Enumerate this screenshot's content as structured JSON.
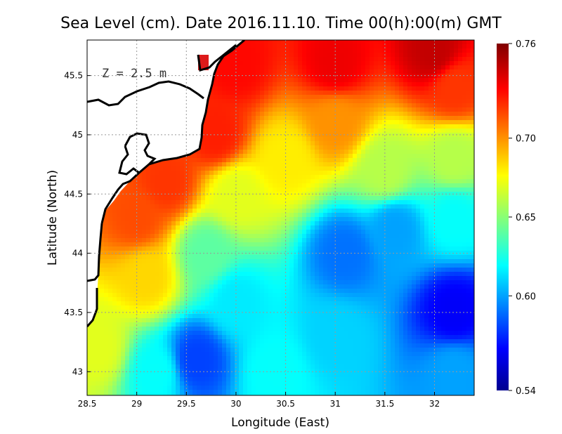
{
  "chart_data": {
    "type": "heatmap",
    "title": "Sea Level (cm). Date 2016.11.10. Time 00(h):00(m) GMT",
    "xlabel": "Longitude (East)",
    "ylabel": "Latitude (North)",
    "annotation": "Z = 2.5 m",
    "xlim": [
      28.5,
      32.4
    ],
    "ylim": [
      42.8,
      45.8
    ],
    "x_ticks": [
      28.5,
      29,
      29.5,
      30,
      30.5,
      31,
      31.5,
      32
    ],
    "x_tick_labels": [
      "28.5",
      "29",
      "29.5",
      "30",
      "30.5",
      "31",
      "31.5",
      "32"
    ],
    "y_ticks": [
      43,
      43.5,
      44,
      44.5,
      45,
      45.5
    ],
    "y_tick_labels": [
      "43",
      "43.5",
      "44",
      "44.5",
      "45",
      "45.5"
    ],
    "grid": true,
    "colorbar": {
      "min": 0.54,
      "max": 0.76,
      "ticks": [
        0.54,
        0.6,
        0.65,
        0.7,
        0.76
      ],
      "tick_labels": [
        "0.54",
        "0.60",
        "0.65",
        "0.70",
        "0.76"
      ],
      "colormap": "jet"
    },
    "field_samples": [
      {
        "lon": 28.6,
        "lat": 43.2,
        "value": 0.67
      },
      {
        "lon": 29.1,
        "lat": 43.8,
        "value": 0.685
      },
      {
        "lon": 29.0,
        "lat": 44.3,
        "value": 0.715
      },
      {
        "lon": 29.3,
        "lat": 44.6,
        "value": 0.72
      },
      {
        "lon": 29.8,
        "lat": 45.0,
        "value": 0.725
      },
      {
        "lon": 30.0,
        "lat": 45.6,
        "value": 0.73
      },
      {
        "lon": 31.0,
        "lat": 45.6,
        "value": 0.735
      },
      {
        "lon": 32.0,
        "lat": 45.7,
        "value": 0.745
      },
      {
        "lon": 32.2,
        "lat": 45.4,
        "value": 0.72
      },
      {
        "lon": 31.0,
        "lat": 45.1,
        "value": 0.7
      },
      {
        "lon": 30.5,
        "lat": 44.8,
        "value": 0.68
      },
      {
        "lon": 30.0,
        "lat": 44.5,
        "value": 0.67
      },
      {
        "lon": 29.7,
        "lat": 44.0,
        "value": 0.64
      },
      {
        "lon": 30.0,
        "lat": 43.6,
        "value": 0.615
      },
      {
        "lon": 29.6,
        "lat": 43.1,
        "value": 0.58
      },
      {
        "lon": 29.2,
        "lat": 43.0,
        "value": 0.62
      },
      {
        "lon": 30.4,
        "lat": 43.0,
        "value": 0.62
      },
      {
        "lon": 31.0,
        "lat": 43.3,
        "value": 0.61
      },
      {
        "lon": 31.1,
        "lat": 44.0,
        "value": 0.59
      },
      {
        "lon": 31.6,
        "lat": 44.2,
        "value": 0.6
      },
      {
        "lon": 32.2,
        "lat": 43.5,
        "value": 0.565
      },
      {
        "lon": 32.2,
        "lat": 44.3,
        "value": 0.62
      },
      {
        "lon": 32.2,
        "lat": 44.8,
        "value": 0.66
      },
      {
        "lon": 31.5,
        "lat": 44.7,
        "value": 0.66
      },
      {
        "lon": 32.2,
        "lat": 43.0,
        "value": 0.6
      }
    ]
  },
  "colors": {
    "land": "#ffffff",
    "coastline": "#000000",
    "grid": "#999999"
  }
}
